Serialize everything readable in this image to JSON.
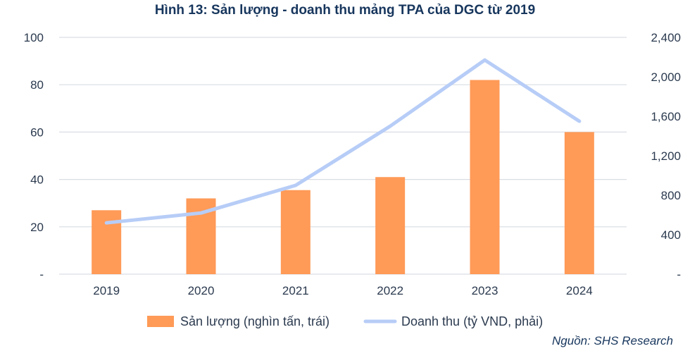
{
  "title": "Hình 13: Sản lượng - doanh thu mảng TPA của DGC từ 2019",
  "source": "Nguồn: SHS Research",
  "colors": {
    "bar": "#ff9a57",
    "line": "#b7cdf7",
    "grid": "#d9dde3",
    "text": "#2b3a4f",
    "title": "#17365d"
  },
  "chart_data": {
    "type": "bar",
    "title": "Hình 13: Sản lượng - doanh thu mảng TPA của DGC từ 2019",
    "categories": [
      "2019",
      "2020",
      "2021",
      "2022",
      "2023",
      "2024"
    ],
    "series": [
      {
        "name": "Sản lượng (nghìn tấn, trái)",
        "type": "bar",
        "axis": "left",
        "values": [
          27,
          32,
          35.5,
          41,
          82,
          60
        ]
      },
      {
        "name": "Doanh thu (tỷ VND, phải)",
        "type": "line",
        "axis": "right",
        "values": [
          520,
          620,
          900,
          1500,
          2170,
          1550
        ]
      }
    ],
    "y_left": {
      "min": 0,
      "max": 100,
      "ticks": [
        0,
        20,
        40,
        60,
        80,
        100
      ],
      "tick_labels": [
        "-",
        "20",
        "40",
        "60",
        "80",
        "100"
      ]
    },
    "y_right": {
      "min": 0,
      "max": 2400,
      "ticks": [
        0,
        400,
        800,
        1200,
        1600,
        2000,
        2400
      ],
      "tick_labels": [
        "-",
        "400",
        "800",
        "1,200",
        "1,600",
        "2,000",
        "2,400"
      ]
    },
    "grid": true,
    "legend_position": "bottom"
  }
}
